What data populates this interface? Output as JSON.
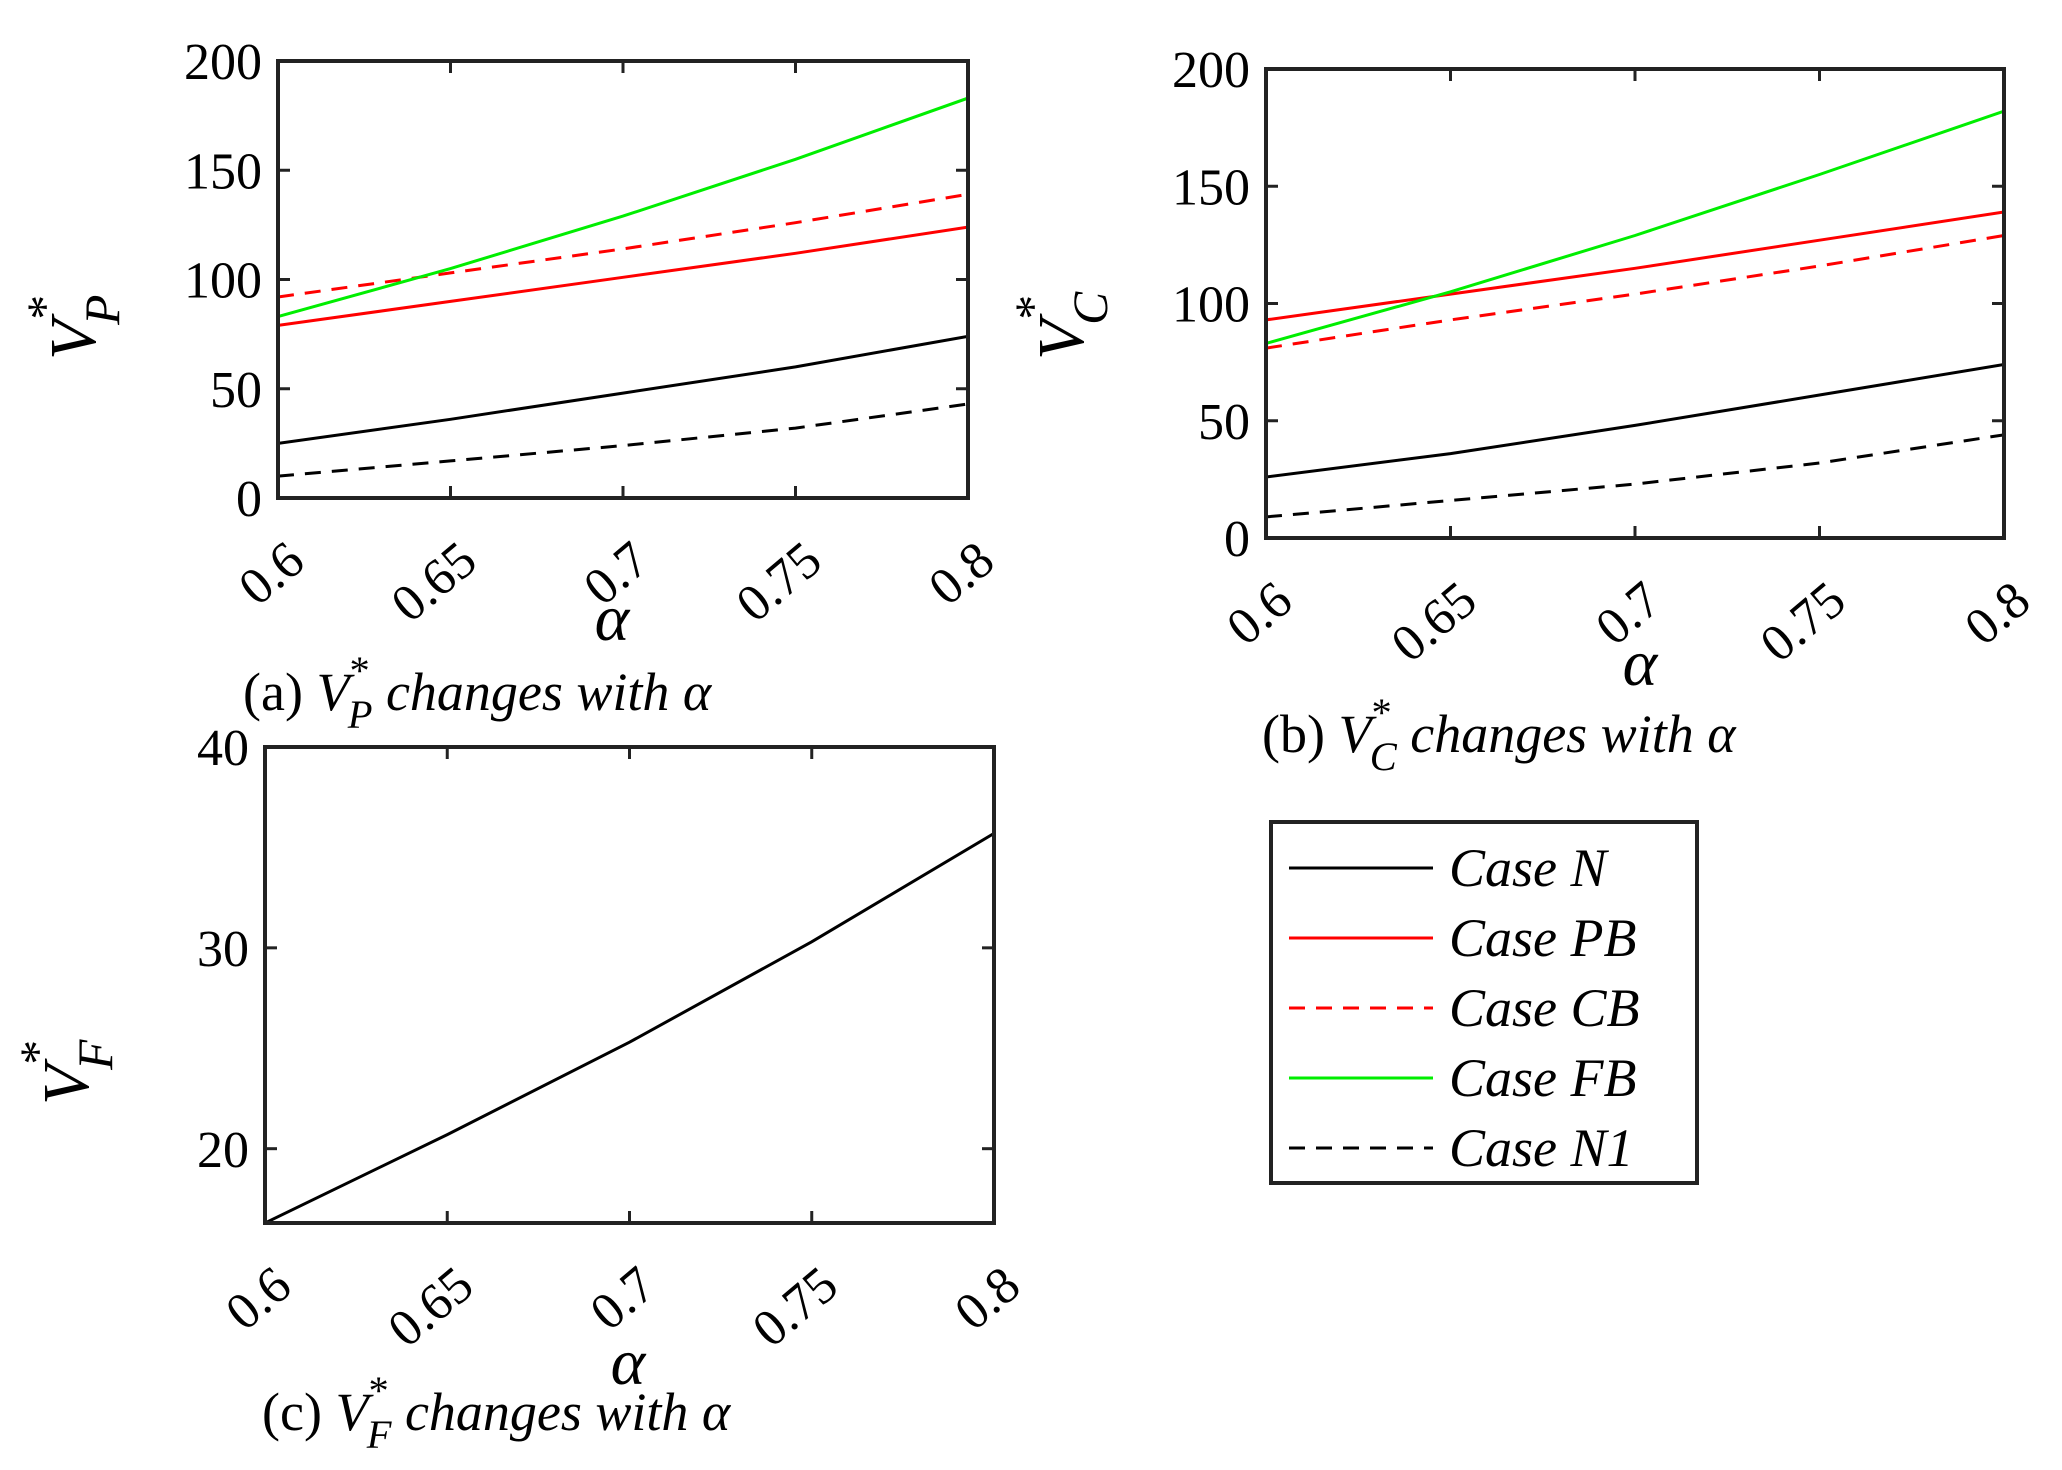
{
  "chart_data": [
    {
      "id": "a",
      "type": "line",
      "caption": {
        "prefix": "(a)",
        "sym": "V",
        "sub": "P",
        "sup": "*",
        "rest": "changes with",
        "greek": "α"
      },
      "ylabel": {
        "sym": "V",
        "sub": "P",
        "sup": "*"
      },
      "xlabel": "α",
      "xlim": [
        0.6,
        0.8
      ],
      "ylim": [
        0,
        200
      ],
      "xticks": [
        "0.6",
        "0.65",
        "0.7",
        "0.75",
        "0.8"
      ],
      "yticks": [
        "0",
        "50",
        "100",
        "150",
        "200"
      ],
      "x": [
        0.6,
        0.65,
        0.7,
        0.75,
        0.8
      ],
      "series": [
        {
          "name": "Case N",
          "color": "#000000",
          "dash": false,
          "values": [
            25,
            36,
            48,
            60,
            74
          ]
        },
        {
          "name": "Case PB",
          "color": "#ff0000",
          "dash": false,
          "values": [
            79,
            90,
            101,
            112,
            124
          ]
        },
        {
          "name": "Case CB",
          "color": "#ff0000",
          "dash": true,
          "values": [
            92,
            103,
            114,
            126,
            139
          ]
        },
        {
          "name": "Case FB",
          "color": "#00ee00",
          "dash": false,
          "values": [
            83,
            105,
            129,
            155,
            183
          ]
        },
        {
          "name": "Case N1",
          "color": "#000000",
          "dash": true,
          "values": [
            10,
            17,
            24,
            32,
            43
          ]
        }
      ]
    },
    {
      "id": "b",
      "type": "line",
      "caption": {
        "prefix": "(b)",
        "sym": "V",
        "sub": "C",
        "sup": "*",
        "rest": "changes with",
        "greek": "α"
      },
      "ylabel": {
        "sym": "V",
        "sub": "C",
        "sup": "*"
      },
      "xlabel": "α",
      "xlim": [
        0.6,
        0.8
      ],
      "ylim": [
        0,
        200
      ],
      "xticks": [
        "0.6",
        "0.65",
        "0.7",
        "0.75",
        "0.8"
      ],
      "yticks": [
        "0",
        "50",
        "100",
        "150",
        "200"
      ],
      "x": [
        0.6,
        0.65,
        0.7,
        0.75,
        0.8
      ],
      "series": [
        {
          "name": "Case N",
          "color": "#000000",
          "dash": false,
          "values": [
            26,
            36,
            48,
            61,
            74
          ]
        },
        {
          "name": "Case PB",
          "color": "#ff0000",
          "dash": false,
          "values": [
            93,
            104,
            115,
            127,
            139
          ]
        },
        {
          "name": "Case CB",
          "color": "#ff0000",
          "dash": true,
          "values": [
            81,
            93,
            104,
            116,
            129
          ]
        },
        {
          "name": "Case FB",
          "color": "#00ee00",
          "dash": false,
          "values": [
            83,
            105,
            129,
            155,
            182
          ]
        },
        {
          "name": "Case N1",
          "color": "#000000",
          "dash": true,
          "values": [
            9,
            16,
            23,
            32,
            44
          ]
        }
      ]
    },
    {
      "id": "c",
      "type": "line",
      "caption": {
        "prefix": "(c)",
        "sym": "V",
        "sub": "F",
        "sup": "*",
        "rest": "changes with",
        "greek": "α"
      },
      "ylabel": {
        "sym": "V",
        "sub": "F",
        "sup": "*"
      },
      "xlabel": "α",
      "xlim": [
        0.6,
        0.8
      ],
      "ylim": [
        16.3,
        40
      ],
      "xticks": [
        "0.6",
        "0.65",
        "0.7",
        "0.75",
        "0.8"
      ],
      "yticks": [
        "20",
        "30",
        "40"
      ],
      "x": [
        0.6,
        0.65,
        0.7,
        0.75,
        0.8
      ],
      "series": [
        {
          "name": "Case N",
          "color": "#000000",
          "dash": false,
          "values": [
            16.3,
            20.7,
            25.3,
            30.3,
            35.7
          ]
        }
      ]
    }
  ],
  "legend": {
    "placement": "below panel (b)",
    "entries": [
      {
        "label": "Case N",
        "color": "#000000",
        "dash": false
      },
      {
        "label": "Case PB",
        "color": "#ff0000",
        "dash": false
      },
      {
        "label": "Case CB",
        "color": "#ff0000",
        "dash": true
      },
      {
        "label": "Case FB",
        "color": "#00ee00",
        "dash": false
      },
      {
        "label": "Case N1",
        "color": "#000000",
        "dash": true
      }
    ]
  }
}
